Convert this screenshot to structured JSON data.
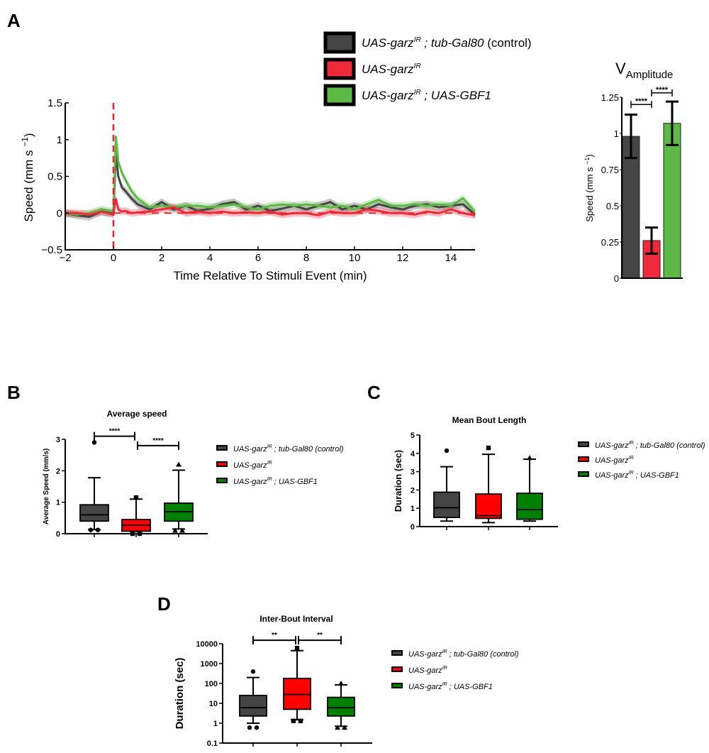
{
  "panel_labels": [
    "A",
    "B",
    "C",
    "D"
  ],
  "colors": {
    "control": "#454545",
    "garz": "#ee2a3a",
    "gbf1": "#5cb945",
    "garz_box": "#ff0000",
    "gbf1_box": "#008000",
    "stim": "#e8242f"
  },
  "legend": [
    {
      "label": "UAS-garz",
      "sup": "IR",
      "suffix": " ; tub-Gal80",
      "note": " (control)"
    },
    {
      "label": "UAS-garz",
      "sup": "IR",
      "suffix": "",
      "note": ""
    },
    {
      "label": "UAS-garz",
      "sup": "IR",
      "suffix": " ; UAS-GBF1",
      "note": ""
    }
  ],
  "chart_data": [
    {
      "id": "A-timecourse",
      "type": "line",
      "xlabel": "Time Relative To Stimuli Event (min)",
      "ylabel": "Speed (mm s",
      "ylabel_sup": "−1",
      "ylabel_end": ")",
      "xlim": [
        -2,
        15
      ],
      "ylim": [
        -0.5,
        1.5
      ],
      "xticks": [
        -2,
        0,
        2,
        4,
        6,
        8,
        10,
        12,
        14
      ],
      "xtick_labels": [
        "−2",
        "0",
        "2",
        "4",
        "6",
        "8",
        "10",
        "12",
        "14"
      ],
      "yticks": [
        -0.5,
        0,
        0.5,
        1,
        1.5
      ],
      "ytick_labels": [
        "−0.5",
        "0",
        "0.5",
        "1",
        "1.5"
      ],
      "stimulus_line_x": 0,
      "x": [
        -2,
        -1.5,
        -1,
        -0.5,
        0,
        0.1,
        0.2,
        0.35,
        0.5,
        0.75,
        1,
        1.5,
        2,
        2.5,
        3,
        3.5,
        4,
        4.5,
        5,
        5.5,
        6,
        6.5,
        7,
        7.5,
        8,
        8.5,
        9,
        9.5,
        10,
        10.5,
        11,
        11.5,
        12,
        12.5,
        13,
        13.5,
        14,
        14.5,
        15
      ],
      "series": [
        {
          "name": "UAS-garzIR ; tub-Gal80 (control)",
          "color": "#454545",
          "values": [
            0,
            -0.03,
            -0.05,
            0.02,
            0,
            0.8,
            0.5,
            0.35,
            0.3,
            0.2,
            0.12,
            0.05,
            0.15,
            0.05,
            0.1,
            0.03,
            0.06,
            0.12,
            0.15,
            0.05,
            0.1,
            0.03,
            0.06,
            0.1,
            0.05,
            0.1,
            0.15,
            0.05,
            0.1,
            0.05,
            0.12,
            0.08,
            0.05,
            0.1,
            0.12,
            0.08,
            0.1,
            0.12,
            -0.02
          ]
        },
        {
          "name": "UAS-garzIR ; UAS-GBF1",
          "color": "#5cb945",
          "values": [
            0,
            -0.02,
            0,
            0.05,
            0.02,
            1.05,
            0.7,
            0.55,
            0.45,
            0.3,
            0.2,
            0.08,
            0.1,
            0.08,
            0.1,
            0.1,
            0.08,
            0.1,
            0.12,
            0.08,
            0.05,
            0.1,
            0.12,
            0.1,
            0.12,
            0.1,
            0.08,
            0.1,
            0.05,
            0.12,
            0.18,
            0.1,
            0.1,
            0.12,
            0.1,
            0.12,
            0.1,
            0.2,
            0.02
          ]
        },
        {
          "name": "UAS-garzIR",
          "color": "#ee2a3a",
          "values": [
            0,
            0,
            -0.02,
            0.02,
            -0.02,
            0.2,
            0.05,
            0.02,
            0.03,
            0,
            0.01,
            0.02,
            0.05,
            0.08,
            0,
            0.02,
            0,
            0.02,
            0,
            0.01,
            0,
            0.02,
            -0.02,
            0,
            0,
            -0.03,
            0.02,
            0,
            0,
            0.05,
            0.03,
            0,
            0,
            -0.02,
            0.02,
            0,
            0.05,
            0,
            -0.03
          ]
        }
      ]
    },
    {
      "id": "A-amplitude",
      "type": "bar",
      "title": "V",
      "title_sub": "Amplitude",
      "ylabel": "Speed (mm s",
      "ylabel_sup": "−1",
      "ylabel_end": ")",
      "ylim": [
        0,
        1.25
      ],
      "yticks": [
        0,
        0.25,
        0.5,
        0.75,
        1,
        1.25
      ],
      "ytick_labels": [
        "0",
        "0.25",
        "0.5",
        "0.75",
        "1",
        "1.25"
      ],
      "categories": [
        "control",
        "garzIR",
        "garzIR;GBF1"
      ],
      "values": [
        0.98,
        0.26,
        1.07
      ],
      "errors": [
        0.15,
        0.09,
        0.15
      ],
      "colors": [
        "#454545",
        "#ee2a3a",
        "#5cb945"
      ],
      "significance": [
        {
          "from": 0,
          "to": 1,
          "y": 1.2,
          "label": "****"
        },
        {
          "from": 1,
          "to": 2,
          "y": 1.28,
          "label": "****"
        }
      ]
    },
    {
      "id": "B",
      "type": "box",
      "title": "Average speed",
      "ylabel": "Average Speed (mm/s)",
      "scale": "linear",
      "ylim": [
        0,
        3
      ],
      "yticks": [
        0,
        1,
        2,
        3
      ],
      "ytick_labels": [
        "0",
        "1",
        "2",
        "3"
      ],
      "boxes": [
        {
          "whisker_low": 0.13,
          "q1": 0.4,
          "median": 0.6,
          "q3": 0.92,
          "whisker_high": 1.78,
          "outliers": [
            2.9,
            0.12
          ],
          "marker": "circle",
          "color": "#454545"
        },
        {
          "whisker_low": 0.07,
          "q1": 0.08,
          "median": 0.27,
          "q3": 0.45,
          "whisker_high": 1.1,
          "outliers": [
            1.15,
            0.0
          ],
          "marker": "square",
          "color": "#ff0000"
        },
        {
          "whisker_low": 0.15,
          "q1": 0.4,
          "median": 0.7,
          "q3": 0.97,
          "whisker_high": 2.02,
          "outliers": [
            2.2,
            0.1
          ],
          "marker": "triangle",
          "color": "#008000"
        }
      ],
      "significance": [
        {
          "from": 0,
          "to": 1,
          "y": 3.1,
          "label": "****"
        },
        {
          "from": 1,
          "to": 2,
          "y": 2.8,
          "label": "****"
        }
      ]
    },
    {
      "id": "C",
      "type": "box",
      "title": "Mean Bout Length",
      "ylabel": "Duration (sec)",
      "scale": "linear",
      "ylim": [
        0,
        5
      ],
      "yticks": [
        0,
        1,
        2,
        3,
        4,
        5
      ],
      "ytick_labels": [
        "0",
        "1",
        "2",
        "3",
        "4",
        "5"
      ],
      "boxes": [
        {
          "whisker_low": 0.3,
          "q1": 0.5,
          "median": 1.03,
          "q3": 1.88,
          "whisker_high": 3.27,
          "outliers": [
            4.15
          ],
          "marker": "circle",
          "color": "#454545"
        },
        {
          "whisker_low": 0.22,
          "q1": 0.45,
          "median": 0.6,
          "q3": 1.78,
          "whisker_high": 3.95,
          "outliers": [
            4.3
          ],
          "marker": "square",
          "color": "#ff0000"
        },
        {
          "whisker_low": 0.3,
          "q1": 0.4,
          "median": 0.93,
          "q3": 1.82,
          "whisker_high": 3.68,
          "outliers": [
            3.75
          ],
          "marker": "triangle",
          "color": "#008000"
        }
      ],
      "significance": []
    },
    {
      "id": "D",
      "type": "box",
      "title": "Inter-Bout Interval",
      "ylabel": "Duration (sec)",
      "scale": "log",
      "ylim": [
        0.1,
        10000
      ],
      "yticks": [
        0.1,
        1,
        10,
        100,
        1000,
        10000
      ],
      "ytick_labels": [
        "0.1",
        "1",
        "10",
        "100",
        "1000",
        "10000"
      ],
      "boxes": [
        {
          "whisker_low": 1.0,
          "q1": 2.3,
          "median": 6,
          "q3": 25,
          "whisker_high": 200,
          "outliers": [
            400,
            0.6
          ],
          "marker": "circle",
          "color": "#454545"
        },
        {
          "whisker_low": 1.5,
          "q1": 5,
          "median": 28,
          "q3": 180,
          "whisker_high": 4500,
          "outliers": [
            6000,
            1.3
          ],
          "marker": "square",
          "color": "#ff0000"
        },
        {
          "whisker_low": 0.7,
          "q1": 2.3,
          "median": 6,
          "q3": 20,
          "whisker_high": 85,
          "outliers": [
            100,
            0.6
          ],
          "marker": "triangle",
          "color": "#008000"
        }
      ],
      "significance": [
        {
          "from": 0,
          "to": 1,
          "y": 15000,
          "label": "**"
        },
        {
          "from": 1,
          "to": 2,
          "y": 15000,
          "label": "**"
        }
      ]
    }
  ]
}
